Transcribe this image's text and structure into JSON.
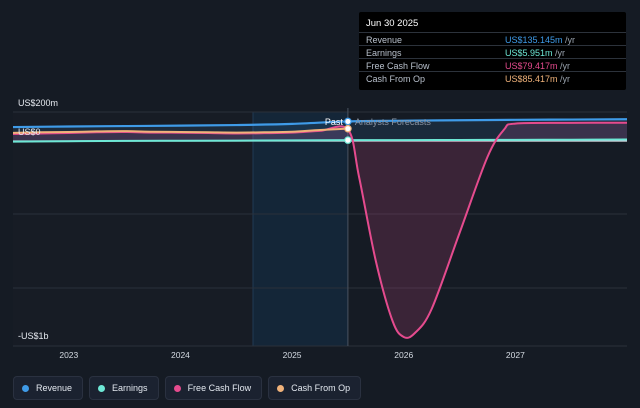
{
  "chart_data": {
    "type": "line",
    "y_labels": {
      "top": "US$200m",
      "zero": "US$0",
      "bottom": "-US$1b"
    },
    "ylim": [
      -1000,
      200
    ],
    "xlim": [
      2022.5,
      2028.0
    ],
    "x_ticks": [
      {
        "value": 2023,
        "label": "2023"
      },
      {
        "value": 2024,
        "label": "2024"
      },
      {
        "value": 2025,
        "label": "2025"
      },
      {
        "value": 2026,
        "label": "2026"
      },
      {
        "value": 2027,
        "label": "2027"
      }
    ],
    "past_label": "Past",
    "forecast_label": "Analysts Forecasts",
    "divider_x": 2025.5,
    "series": [
      {
        "name": "Revenue",
        "color": "#3f9be8",
        "x": [
          2022.5,
          2023.0,
          2023.5,
          2024.0,
          2024.5,
          2025.0,
          2025.5,
          2026.0,
          2026.5,
          2027.0,
          2027.5,
          2028.0
        ],
        "y": [
          96,
          100,
          103,
          106,
          110,
          118,
          135,
          140,
          143,
          146,
          148,
          150
        ]
      },
      {
        "name": "Earnings",
        "color": "#6ee8d6",
        "x": [
          2022.5,
          2023.0,
          2023.5,
          2024.0,
          2024.5,
          2025.0,
          2025.5,
          2026.0,
          2026.5,
          2027.0,
          2027.5,
          2028.0
        ],
        "y": [
          -3,
          -1,
          1,
          2,
          3,
          4,
          6,
          6,
          7,
          8,
          9,
          10
        ]
      },
      {
        "name": "Free Cash Flow",
        "color": "#e54b8e",
        "x": [
          2022.5,
          2022.75,
          2023.0,
          2023.25,
          2023.5,
          2023.75,
          2024.0,
          2024.25,
          2024.5,
          2024.75,
          2025.0,
          2025.25,
          2025.5,
          2025.6,
          2025.75,
          2025.9,
          2026.0,
          2026.1,
          2026.25,
          2026.5,
          2026.75,
          2026.9,
          2027.0,
          2027.5,
          2028.0
        ],
        "y": [
          48,
          52,
          55,
          60,
          62,
          58,
          57,
          55,
          52,
          54,
          58,
          70,
          79,
          -180,
          -600,
          -900,
          -980,
          -960,
          -840,
          -460,
          -80,
          80,
          120,
          125,
          126
        ]
      },
      {
        "name": "Cash From Op",
        "color": "#f0b27a",
        "x": [
          2022.5,
          2022.75,
          2023.0,
          2023.25,
          2023.5,
          2023.75,
          2024.0,
          2024.25,
          2024.5,
          2024.75,
          2025.0,
          2025.25,
          2025.5
        ],
        "y": [
          56,
          60,
          62,
          66,
          68,
          64,
          62,
          60,
          58,
          60,
          64,
          76,
          85
        ]
      }
    ]
  },
  "tooltip": {
    "date": "Jun 30 2025",
    "rows": [
      {
        "label": "Revenue",
        "value": "US$135.145m",
        "unit": " /yr",
        "color": "#3f9be8"
      },
      {
        "label": "Earnings",
        "value": "US$5.951m",
        "unit": " /yr",
        "color": "#6ee8d6"
      },
      {
        "label": "Free Cash Flow",
        "value": "US$79.417m",
        "unit": " /yr",
        "color": "#e54b8e"
      },
      {
        "label": "Cash From Op",
        "value": "US$85.417m",
        "unit": " /yr",
        "color": "#f0b27a"
      }
    ]
  },
  "legend": [
    {
      "label": "Revenue",
      "color": "#3f9be8"
    },
    {
      "label": "Earnings",
      "color": "#6ee8d6"
    },
    {
      "label": "Free Cash Flow",
      "color": "#e54b8e"
    },
    {
      "label": "Cash From Op",
      "color": "#f0b27a"
    }
  ]
}
